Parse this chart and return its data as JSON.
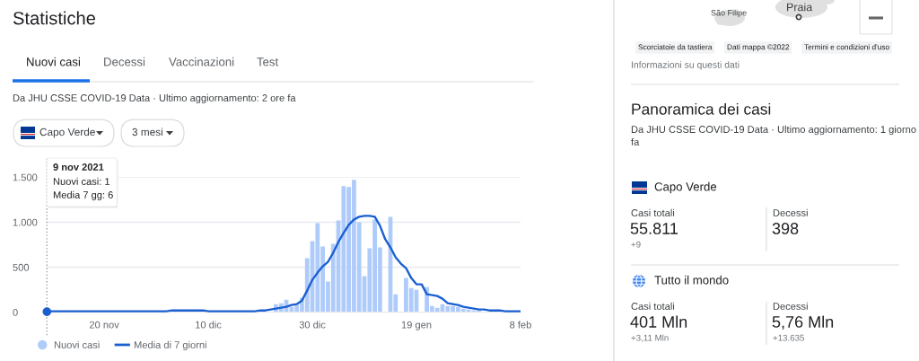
{
  "chart_data": [
    {
      "type": "bar",
      "title": "Statistiche",
      "subtitle": "Da JHU CSSE COVID-19 Data · Ultimo aggiornamento: 2 ore fa",
      "annotations": [
        "Nuovi casi",
        "Decessi",
        "Vaccinazioni",
        "Test",
        "Capo Verde",
        "3 mesi",
        "9 nov 2021",
        "Nuovi casi: 1",
        "Media 7 gg: 6"
      ],
      "x": [
        "2021-11-09",
        "2021-11-10",
        "2021-11-11",
        "2021-11-12",
        "2021-11-13",
        "2021-11-14",
        "2021-11-15",
        "2021-11-16",
        "2021-11-17",
        "2021-11-18",
        "2021-11-19",
        "2021-11-20",
        "2021-11-21",
        "2021-11-22",
        "2021-11-23",
        "2021-11-24",
        "2021-11-25",
        "2021-11-26",
        "2021-11-27",
        "2021-11-28",
        "2021-11-29",
        "2021-11-30",
        "2021-12-01",
        "2021-12-02",
        "2021-12-03",
        "2021-12-04",
        "2021-12-05",
        "2021-12-06",
        "2021-12-07",
        "2021-12-08",
        "2021-12-09",
        "2021-12-10",
        "2021-12-11",
        "2021-12-12",
        "2021-12-13",
        "2021-12-14",
        "2021-12-15",
        "2021-12-16",
        "2021-12-17",
        "2021-12-18",
        "2021-12-19",
        "2021-12-20",
        "2021-12-21",
        "2021-12-22",
        "2021-12-23",
        "2021-12-24",
        "2021-12-25",
        "2021-12-26",
        "2021-12-27",
        "2021-12-28",
        "2021-12-29",
        "2021-12-30",
        "2021-12-31",
        "2022-01-01",
        "2022-01-02",
        "2022-01-03",
        "2022-01-04",
        "2022-01-05",
        "2022-01-06",
        "2022-01-07",
        "2022-01-08",
        "2022-01-09",
        "2022-01-10",
        "2022-01-11",
        "2022-01-12",
        "2022-01-13",
        "2022-01-14",
        "2022-01-15",
        "2022-01-16",
        "2022-01-17",
        "2022-01-18",
        "2022-01-19",
        "2022-01-20",
        "2022-01-21",
        "2022-01-22",
        "2022-01-23",
        "2022-01-24",
        "2022-01-25",
        "2022-01-26",
        "2022-01-27",
        "2022-01-28",
        "2022-01-29",
        "2022-01-30",
        "2022-01-31",
        "2022-02-01",
        "2022-02-02",
        "2022-02-03",
        "2022-02-04",
        "2022-02-05",
        "2022-02-06",
        "2022-02-07",
        "2022-02-08"
      ],
      "series": [
        {
          "name": "Nuovi casi",
          "type": "bar",
          "color": "#aecbfa",
          "values": [
            null,
            null,
            null,
            null,
            null,
            null,
            null,
            null,
            null,
            null,
            null,
            null,
            null,
            null,
            null,
            null,
            null,
            null,
            null,
            null,
            null,
            null,
            null,
            null,
            null,
            null,
            null,
            null,
            null,
            null,
            null,
            null,
            null,
            null,
            null,
            null,
            null,
            null,
            null,
            null,
            null,
            null,
            null,
            null,
            90,
            100,
            140,
            60,
            80,
            160,
            600,
            790,
            990,
            730,
            340,
            760,
            1020,
            1400,
            1390,
            1470,
            1000,
            400,
            710,
            1030,
            720,
            null,
            1060,
            200,
            null,
            380,
            270,
            250,
            null,
            280,
            70,
            50,
            90,
            70,
            70,
            60,
            40,
            30,
            20,
            20,
            null,
            null,
            null,
            null,
            null,
            null,
            null,
            null
          ]
        },
        {
          "name": "Media di 7 giorni",
          "type": "line",
          "color": "#1a5fd1",
          "values": [
            6,
            10,
            10,
            10,
            10,
            10,
            10,
            10,
            10,
            10,
            10,
            10,
            10,
            10,
            10,
            10,
            10,
            10,
            10,
            10,
            10,
            10,
            10,
            10,
            20,
            20,
            20,
            20,
            20,
            20,
            20,
            10,
            10,
            10,
            10,
            10,
            10,
            10,
            10,
            10,
            10,
            20,
            20,
            30,
            40,
            50,
            60,
            80,
            90,
            130,
            240,
            360,
            440,
            510,
            560,
            660,
            780,
            880,
            970,
            1030,
            1060,
            1070,
            1070,
            1060,
            960,
            810,
            720,
            610,
            540,
            490,
            380,
            310,
            310,
            200,
            190,
            180,
            150,
            100,
            90,
            80,
            60,
            50,
            40,
            30,
            30,
            20,
            20,
            20,
            10,
            10,
            10,
            10
          ]
        }
      ],
      "xlim": [
        "2021-11-09",
        "2022-02-08"
      ],
      "xticks": [
        {
          "value": "2021-11-20",
          "label": "20 nov"
        },
        {
          "value": "2021-12-10",
          "label": "10 dic"
        },
        {
          "value": "2021-12-30",
          "label": "30 dic"
        },
        {
          "value": "2022-01-19",
          "label": "19 gen"
        },
        {
          "value": "2022-02-08",
          "label": "8 feb"
        }
      ],
      "ylim": [
        0,
        1500
      ],
      "yticks": [
        0,
        500,
        {
          "value": 1000,
          "label": "1.000"
        },
        {
          "value": 1500,
          "label": "1.500"
        }
      ],
      "ref_lines": [
        {
          "axis": "x",
          "value": "2021-11-09",
          "color": "#9aa0a6",
          "line_style": "dotted"
        }
      ],
      "grid": "y",
      "legend": "bottom"
    },
    {
      "type": "other",
      "title": "Panoramica dei casi",
      "subtitle": "Da JHU CSSE COVID-19 Data · Ultimo aggiornamento: 1 giorno fa",
      "annotations": [
        "São Filipe",
        "Praia",
        "Scorciatoie da tastiera",
        "Dati mappa ©2022",
        "Termini e condizioni d'uso",
        "Informazioni su questi dati",
        "Capo Verde",
        "Casi totali",
        "55.811",
        "+9",
        "Decessi",
        "398",
        "Tutto il mondo",
        "Casi totali",
        "401 Mln",
        "+3,11 Mln",
        "Decessi",
        "5,76 Mln",
        "+13.635"
      ]
    }
  ]
}
